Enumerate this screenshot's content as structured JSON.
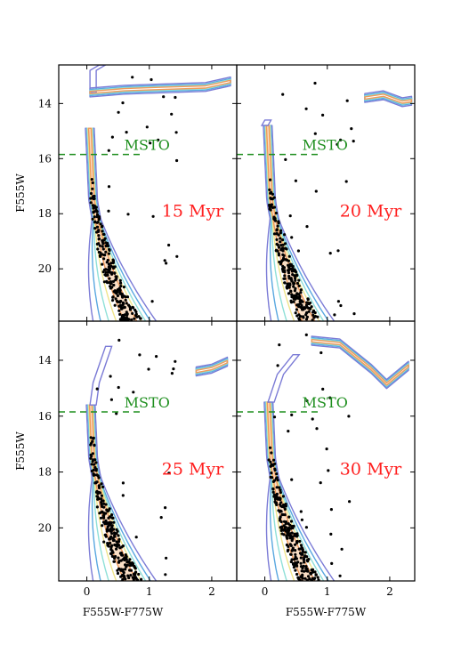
{
  "figure": {
    "shared": {
      "xlabel": "F555W-F775W",
      "ylabel": "F555W",
      "xlim": [
        -0.45,
        2.4
      ],
      "ylim": [
        21.9,
        12.6
      ],
      "xticks": [
        0,
        1,
        2
      ],
      "yticks": [
        14,
        16,
        18,
        20
      ],
      "y_inverted": true,
      "grid": false,
      "colors": {
        "stars": "#000000",
        "age_label": "#ff2020",
        "msto": "#1f8f1f",
        "contours": [
          "#7b7bd6",
          "#5aa8e0",
          "#8fe0d8",
          "#f0e58a",
          "#f09a5a"
        ]
      }
    },
    "chart_data": [
      {
        "type": "scatter",
        "panel": "top-left",
        "age_label": "15 Myr",
        "msto_label": "MSTO",
        "msto_mag": 15.85,
        "ms_turnoff_top": 14.9,
        "isochrone": [
          [
            0.1,
            13.6
          ],
          [
            0.1,
            12.8
          ],
          [
            0.25,
            12.6
          ]
        ],
        "secondary": [
          [
            0.05,
            13.6
          ],
          [
            0.6,
            13.5
          ],
          [
            1.2,
            13.45
          ],
          [
            1.9,
            13.4
          ],
          [
            2.3,
            13.2
          ]
        ]
      },
      {
        "type": "scatter",
        "panel": "top-right",
        "age_label": "20 Myr",
        "msto_label": "MSTO",
        "msto_mag": 15.85,
        "ms_turnoff_top": 14.8,
        "isochrone": [
          [
            0.0,
            14.8
          ],
          [
            0.05,
            14.6
          ]
        ],
        "secondary": [
          [
            1.6,
            13.8
          ],
          [
            1.9,
            13.7
          ],
          [
            2.2,
            13.95
          ],
          [
            2.35,
            13.9
          ]
        ]
      },
      {
        "type": "scatter",
        "panel": "bottom-left",
        "age_label": "25 Myr",
        "msto_label": "MSTO",
        "msto_mag": 15.85,
        "ms_turnoff_top": 15.6,
        "isochrone": [
          [
            0.1,
            15.6
          ],
          [
            0.15,
            14.8
          ],
          [
            0.35,
            13.5
          ]
        ],
        "secondary": [
          [
            1.75,
            14.4
          ],
          [
            2.0,
            14.3
          ],
          [
            2.25,
            14.05
          ]
        ]
      },
      {
        "type": "scatter",
        "panel": "bottom-right",
        "age_label": "30 Myr",
        "msto_label": "MSTO",
        "msto_mag": 15.85,
        "ms_turnoff_top": 15.5,
        "isochrone": [
          [
            0.1,
            15.5
          ],
          [
            0.25,
            14.5
          ],
          [
            0.5,
            13.8
          ]
        ],
        "secondary": [
          [
            0.75,
            13.3
          ],
          [
            1.2,
            13.4
          ],
          [
            1.7,
            14.3
          ],
          [
            1.95,
            14.85
          ],
          [
            2.3,
            14.2
          ]
        ]
      }
    ]
  }
}
